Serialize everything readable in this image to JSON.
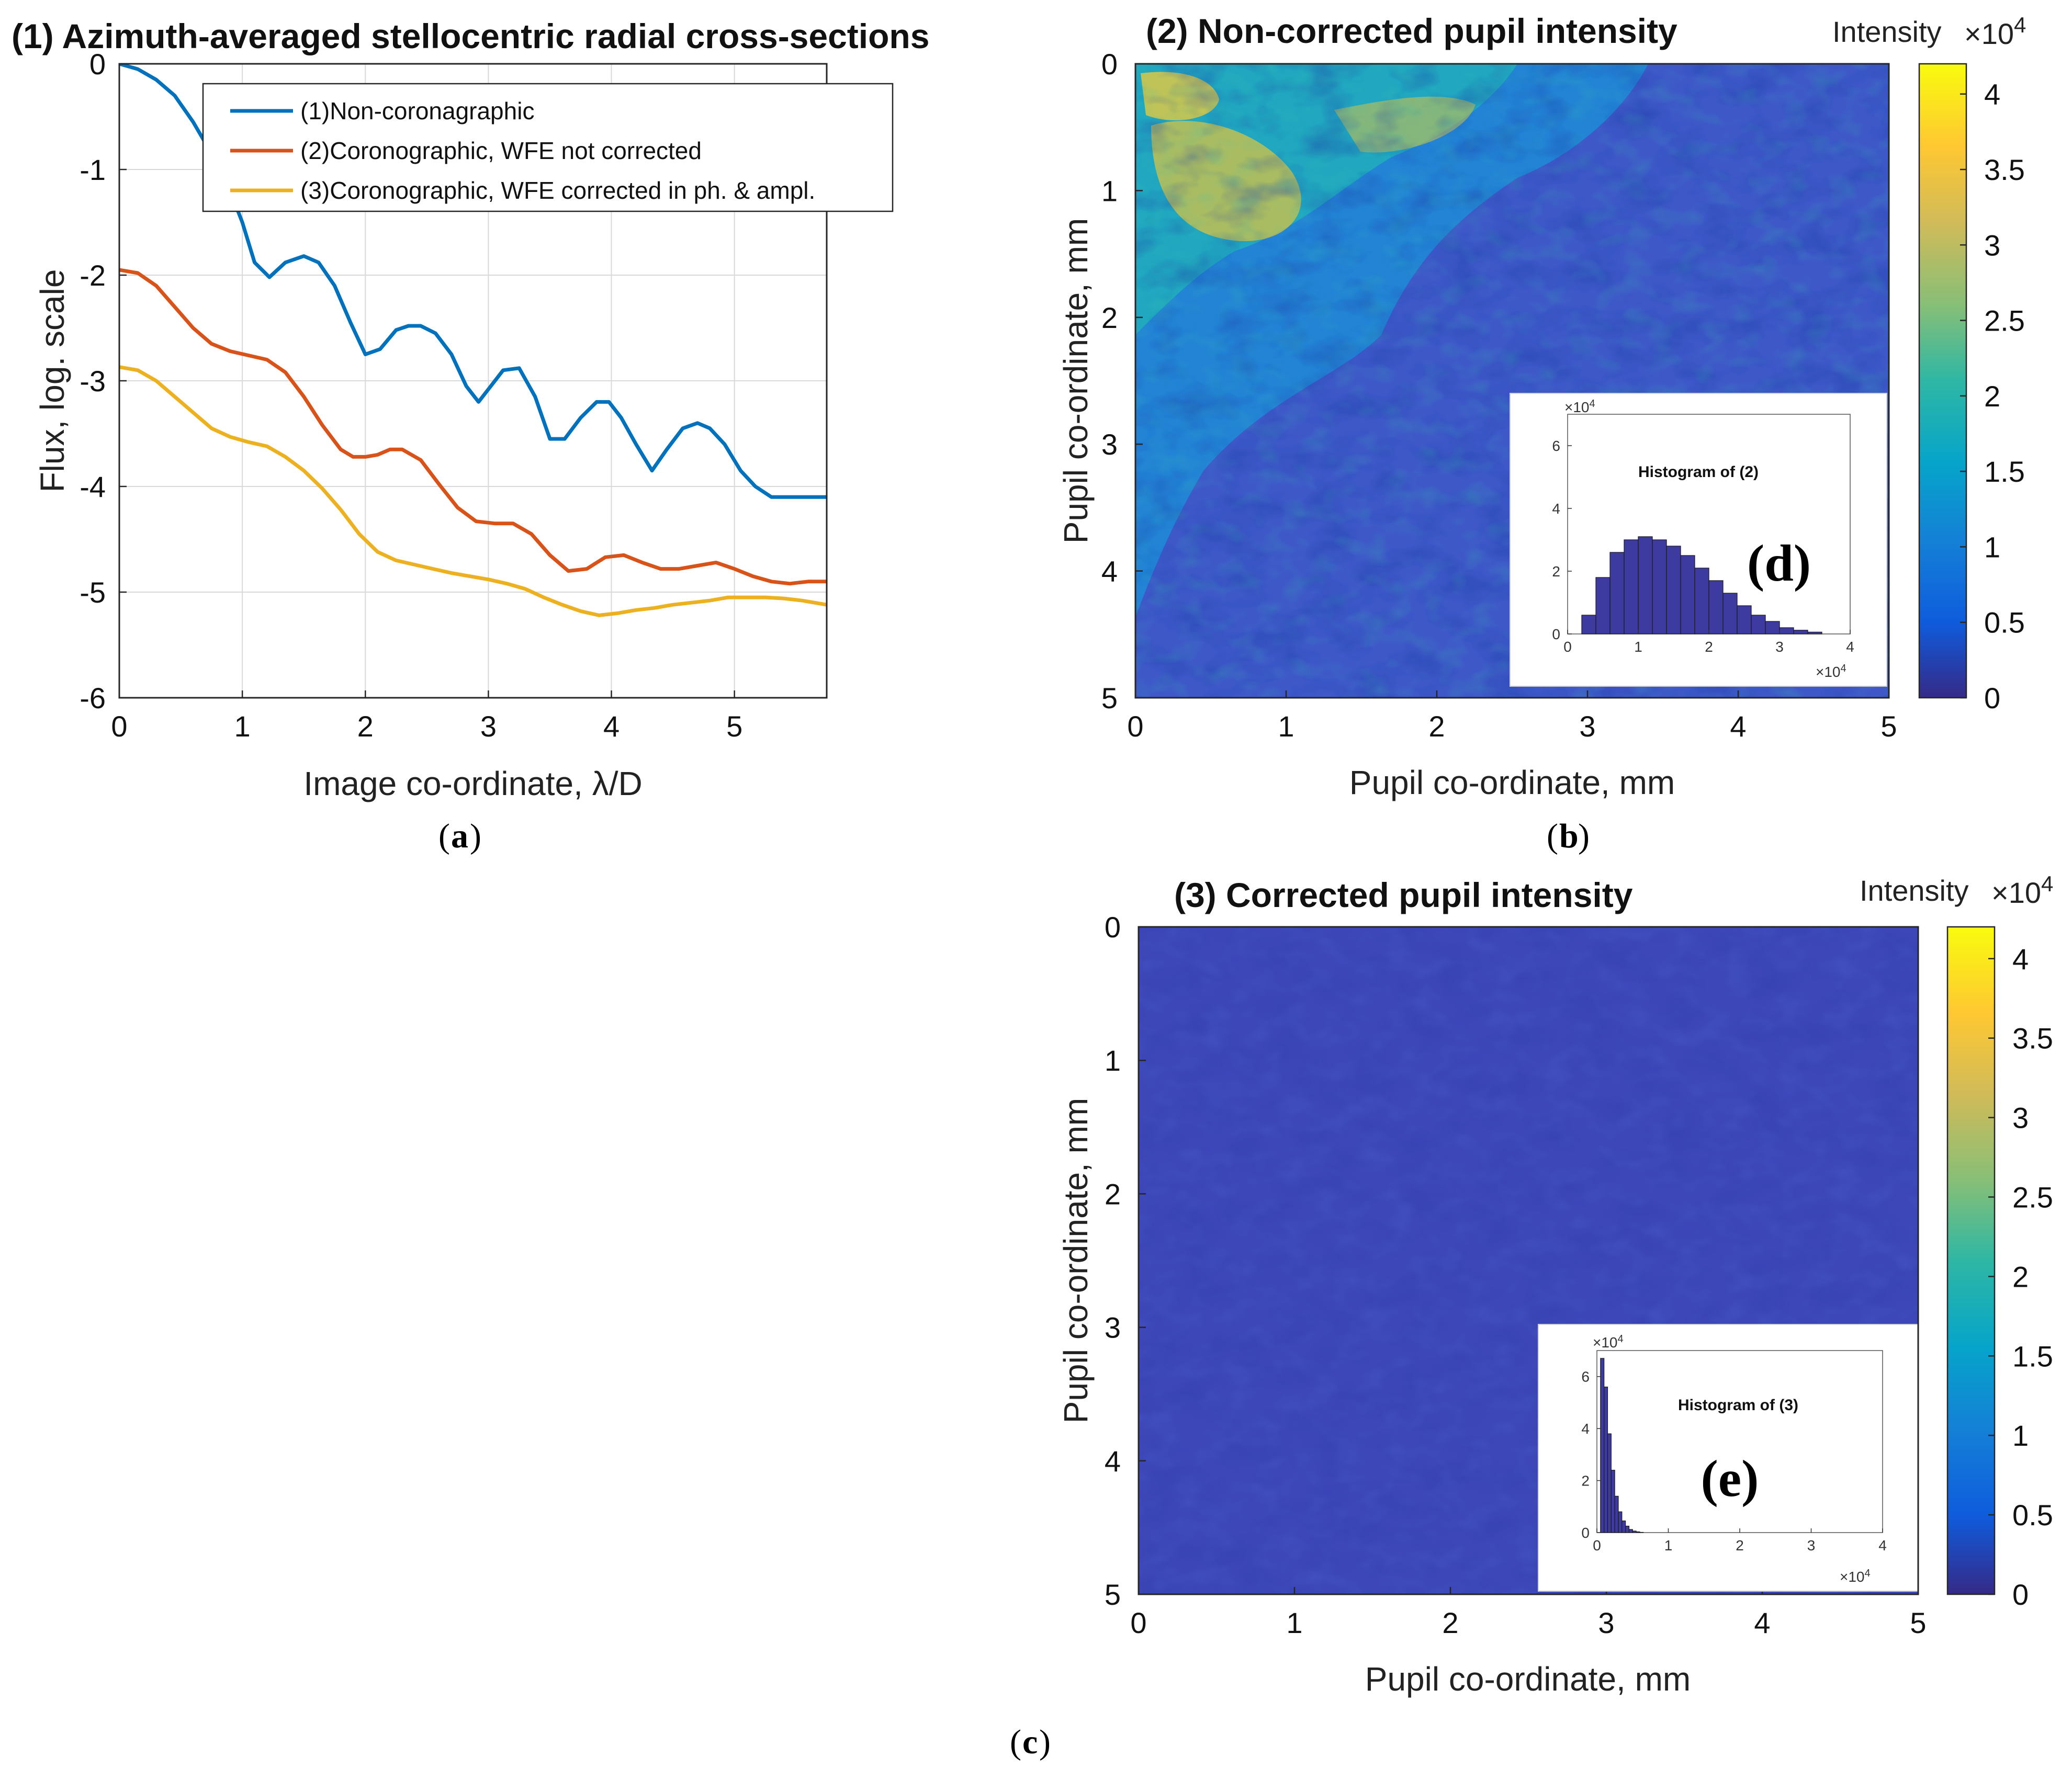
{
  "chart_data": [
    {
      "type": "line",
      "panel_letter": "a",
      "title": "(1) Azimuth-averaged stellocentric radial cross-sections",
      "xlabel": "Image co-ordinate, λ/D",
      "ylabel": "Flux, log. scale",
      "xlim": [
        0,
        5.75
      ],
      "ylim": [
        -6,
        0
      ],
      "xticks": [
        0,
        1,
        2,
        3,
        4,
        5
      ],
      "yticks": [
        0,
        -1,
        -2,
        -3,
        -4,
        -5,
        -6
      ],
      "grid": true,
      "legend_position": "top-right",
      "series": [
        {
          "name": "(1)Non-coronagraphic",
          "color": "#0072BD",
          "x": [
            0,
            0.15,
            0.3,
            0.45,
            0.6,
            0.75,
            0.9,
            1.0,
            1.1,
            1.22,
            1.35,
            1.5,
            1.62,
            1.75,
            1.88,
            2.0,
            2.12,
            2.25,
            2.35,
            2.45,
            2.57,
            2.7,
            2.82,
            2.92,
            3.02,
            3.12,
            3.25,
            3.38,
            3.5,
            3.62,
            3.75,
            3.88,
            3.98,
            4.08,
            4.2,
            4.33,
            4.45,
            4.58,
            4.7,
            4.8,
            4.92,
            5.05,
            5.17,
            5.3,
            5.42,
            5.55,
            5.65,
            5.75
          ],
          "y": [
            0,
            -0.05,
            -0.15,
            -0.3,
            -0.55,
            -0.85,
            -1.2,
            -1.5,
            -1.88,
            -2.02,
            -1.88,
            -1.82,
            -1.88,
            -2.1,
            -2.45,
            -2.75,
            -2.7,
            -2.52,
            -2.48,
            -2.48,
            -2.55,
            -2.75,
            -3.05,
            -3.2,
            -3.05,
            -2.9,
            -2.88,
            -3.15,
            -3.55,
            -3.55,
            -3.35,
            -3.2,
            -3.2,
            -3.35,
            -3.6,
            -3.85,
            -3.65,
            -3.45,
            -3.4,
            -3.45,
            -3.6,
            -3.85,
            -4.0,
            -4.1,
            -4.1,
            -4.1,
            -4.1,
            -4.1
          ]
        },
        {
          "name": "(2)Coronographic, WFE not corrected",
          "color": "#D95319",
          "x": [
            0,
            0.15,
            0.3,
            0.45,
            0.6,
            0.75,
            0.9,
            1.05,
            1.2,
            1.35,
            1.5,
            1.65,
            1.8,
            1.9,
            2.0,
            2.1,
            2.2,
            2.3,
            2.45,
            2.6,
            2.75,
            2.9,
            3.05,
            3.2,
            3.35,
            3.5,
            3.65,
            3.8,
            3.95,
            4.1,
            4.25,
            4.4,
            4.55,
            4.7,
            4.85,
            5.0,
            5.15,
            5.3,
            5.45,
            5.6,
            5.75
          ],
          "y": [
            -1.95,
            -1.98,
            -2.1,
            -2.3,
            -2.5,
            -2.65,
            -2.72,
            -2.76,
            -2.8,
            -2.92,
            -3.15,
            -3.42,
            -3.65,
            -3.72,
            -3.72,
            -3.7,
            -3.65,
            -3.65,
            -3.75,
            -3.98,
            -4.2,
            -4.33,
            -4.35,
            -4.35,
            -4.45,
            -4.65,
            -4.8,
            -4.78,
            -4.67,
            -4.65,
            -4.72,
            -4.78,
            -4.78,
            -4.75,
            -4.72,
            -4.78,
            -4.85,
            -4.9,
            -4.92,
            -4.9,
            -4.9
          ]
        },
        {
          "name": "(3)Coronographic, WFE corrected in ph. & ampl.",
          "color": "#EDB120",
          "x": [
            0,
            0.15,
            0.3,
            0.45,
            0.6,
            0.75,
            0.9,
            1.05,
            1.2,
            1.35,
            1.5,
            1.65,
            1.8,
            1.95,
            2.1,
            2.25,
            2.4,
            2.55,
            2.7,
            2.85,
            3.0,
            3.15,
            3.3,
            3.45,
            3.6,
            3.75,
            3.9,
            4.05,
            4.2,
            4.35,
            4.5,
            4.65,
            4.8,
            4.95,
            5.1,
            5.25,
            5.4,
            5.55,
            5.75
          ],
          "y": [
            -2.87,
            -2.9,
            -3.0,
            -3.15,
            -3.3,
            -3.45,
            -3.53,
            -3.58,
            -3.62,
            -3.72,
            -3.85,
            -4.02,
            -4.22,
            -4.45,
            -4.62,
            -4.7,
            -4.74,
            -4.78,
            -4.82,
            -4.85,
            -4.88,
            -4.92,
            -4.97,
            -5.05,
            -5.12,
            -5.18,
            -5.22,
            -5.2,
            -5.17,
            -5.15,
            -5.12,
            -5.1,
            -5.08,
            -5.05,
            -5.05,
            -5.05,
            -5.06,
            -5.08,
            -5.12
          ]
        }
      ]
    },
    {
      "type": "heatmap",
      "panel_letter": "b",
      "title": "(2) Non-corrected pupil intensity",
      "xlabel": "Pupil co-ordinate, mm",
      "ylabel": "Pupil co-ordinate, mm",
      "xlim": [
        0,
        5
      ],
      "ylim": [
        0,
        5
      ],
      "xticks": [
        0,
        1,
        2,
        3,
        4,
        5
      ],
      "yticks": [
        0,
        1,
        2,
        3,
        4,
        5
      ],
      "colorbar_label": "Intensity",
      "colorbar_exponent": "×10",
      "colorbar_exponent_power": "4",
      "colorbar_range": [
        0,
        42000
      ],
      "colorbar_ticks": [
        "0",
        "0.5",
        "1",
        "1.5",
        "2",
        "2.5",
        "3",
        "3.5",
        "4"
      ],
      "colormap": "parula",
      "inset": {
        "title": "Histogram of (2)",
        "letter": "(d)",
        "ymax_label": "×10",
        "ymax_power": "4",
        "x_exponent": "×10",
        "x_exponent_power": "4",
        "xticks": [
          "0",
          "1",
          "2",
          "3",
          "4"
        ],
        "yticks": [
          "0",
          "2",
          "4",
          "6"
        ],
        "xlim": [
          0,
          4
        ],
        "ylim": [
          0,
          7
        ],
        "bin_width": 0.2,
        "bin_starts": [
          0.2,
          0.4,
          0.6,
          0.8,
          1.0,
          1.2,
          1.4,
          1.6,
          1.8,
          2.0,
          2.2,
          2.4,
          2.6,
          2.8,
          3.0,
          3.2,
          3.4
        ],
        "bin_counts": [
          0.6,
          1.8,
          2.6,
          3.0,
          3.1,
          3.0,
          2.8,
          2.5,
          2.1,
          1.7,
          1.3,
          0.9,
          0.6,
          0.4,
          0.2,
          0.12,
          0.06
        ]
      }
    },
    {
      "type": "heatmap",
      "panel_letter": "c",
      "title": "(3) Corrected pupil intensity",
      "xlabel": "Pupil co-ordinate, mm",
      "ylabel": "Pupil co-ordinate, mm",
      "xlim": [
        0,
        5
      ],
      "ylim": [
        0,
        5
      ],
      "xticks": [
        0,
        1,
        2,
        3,
        4,
        5
      ],
      "yticks": [
        0,
        1,
        2,
        3,
        4,
        5
      ],
      "colorbar_label": "Intensity",
      "colorbar_exponent": "×10",
      "colorbar_exponent_power": "4",
      "colorbar_range": [
        0,
        42000
      ],
      "colorbar_ticks": [
        "0",
        "0.5",
        "1",
        "1.5",
        "2",
        "2.5",
        "3",
        "3.5",
        "4"
      ],
      "colormap": "parula",
      "inset": {
        "title": "Histogram of (3)",
        "letter": "(e)",
        "ymax_label": "×10",
        "ymax_power": "4",
        "x_exponent": "×10",
        "x_exponent_power": "4",
        "xticks": [
          "0",
          "1",
          "2",
          "3",
          "4"
        ],
        "yticks": [
          "0",
          "2",
          "4",
          "6"
        ],
        "xlim": [
          0,
          4
        ],
        "ylim": [
          0,
          7
        ],
        "bin_width": 0.05,
        "bin_starts": [
          0.05,
          0.1,
          0.15,
          0.2,
          0.25,
          0.3,
          0.35,
          0.4,
          0.45,
          0.5,
          0.55,
          0.6
        ],
        "bin_counts": [
          6.7,
          5.6,
          3.8,
          2.4,
          1.4,
          0.8,
          0.45,
          0.25,
          0.12,
          0.06,
          0.03,
          0.01
        ]
      }
    }
  ]
}
